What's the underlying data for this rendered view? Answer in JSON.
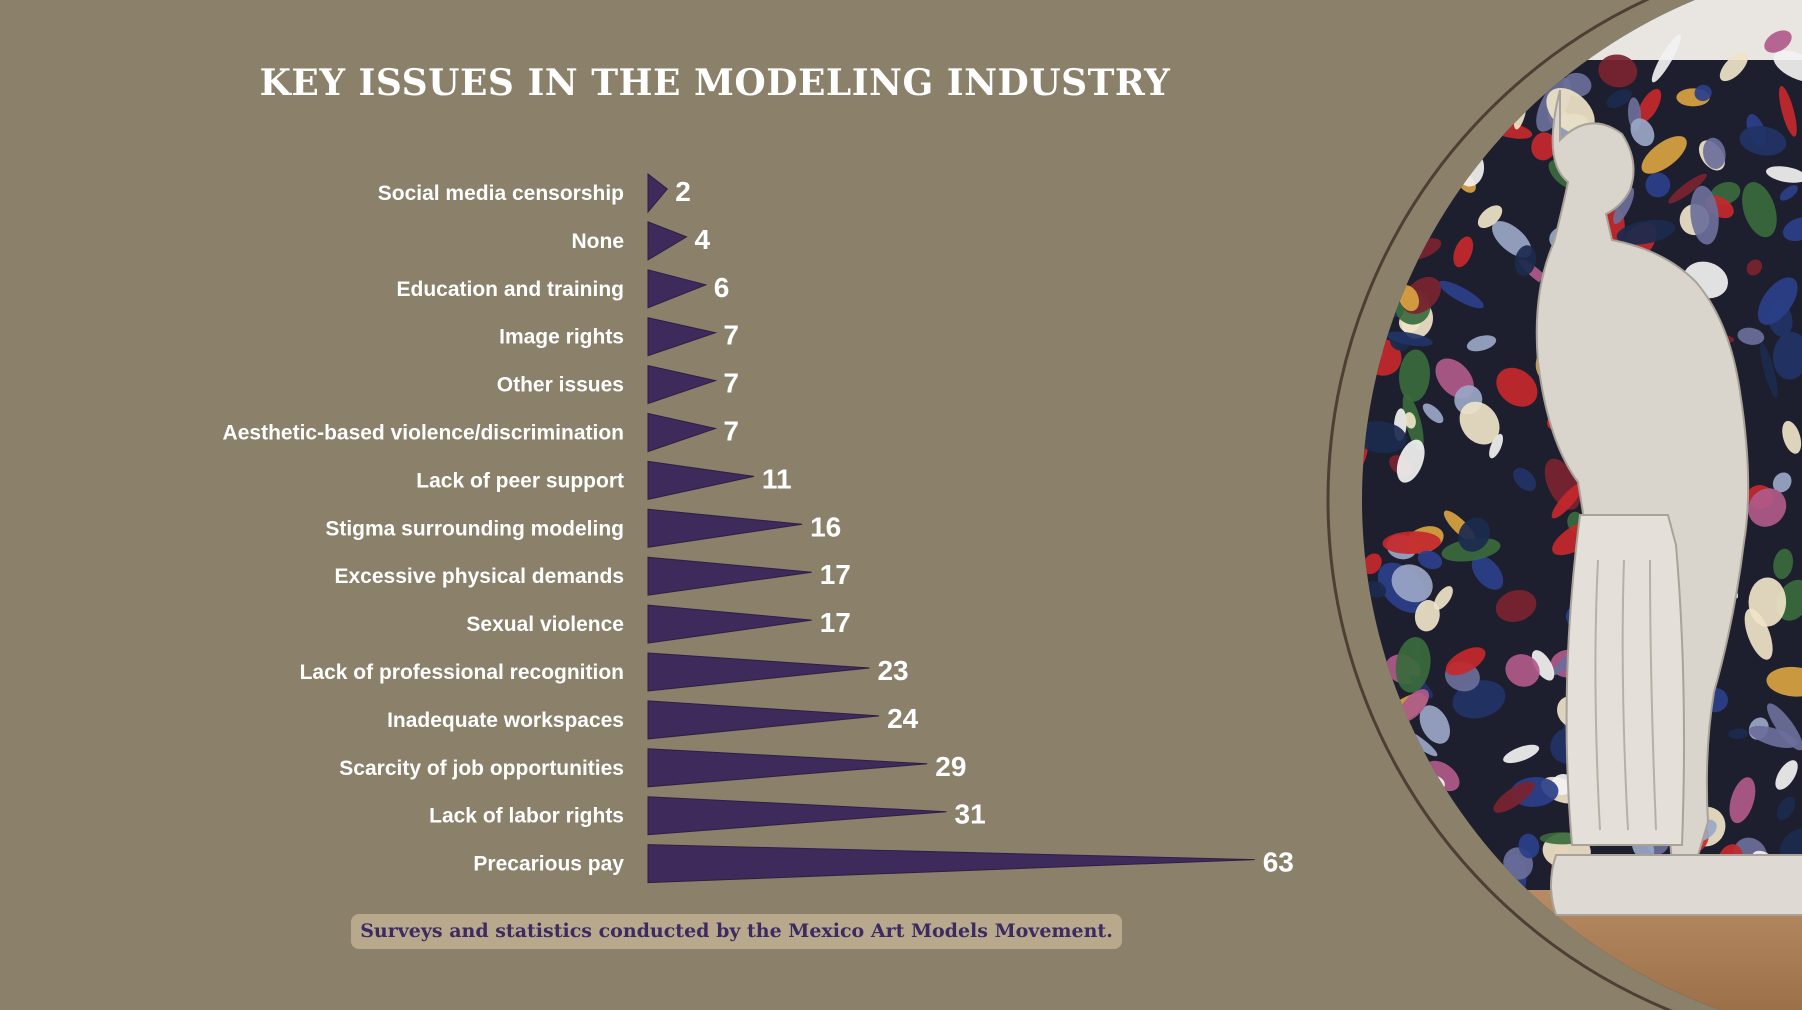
{
  "chart_data": {
    "type": "bar",
    "title": "KEY ISSUES IN THE MODELING INDUSTRY",
    "orientation": "horizontal",
    "categories": [
      "Social media censorship",
      "None",
      "Education and training",
      "Image rights",
      "Other issues",
      "Aesthetic-based violence/discrimination",
      "Lack of peer support",
      "Stigma surrounding modeling",
      "Excessive physical demands",
      "Sexual violence",
      "Lack of professional recognition",
      "Inadequate workspaces",
      "Scarcity of job opportunities",
      "Lack of labor rights",
      "Precarious pay"
    ],
    "values": [
      2,
      4,
      6,
      7,
      7,
      7,
      11,
      16,
      17,
      17,
      23,
      24,
      29,
      31,
      63
    ],
    "bar_style": "triangle",
    "bar_color": "#3f2a5c",
    "data_labels": true
  },
  "footnote": "Surveys and statistics conducted by the Mexico Art Models Movement.",
  "colors": {
    "background": "#8b806a",
    "bar": "#3f2a5c",
    "label_text": "#ffffff",
    "footnote_bg": "#b8a98c",
    "footnote_text": "#3d2a63"
  }
}
